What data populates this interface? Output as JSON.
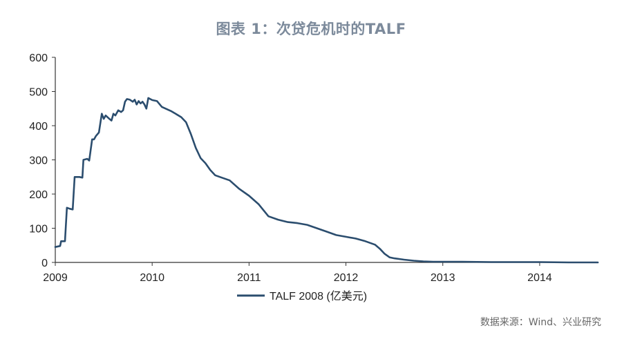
{
  "chart_data": {
    "type": "line",
    "title": "图表 1：次贷危机时的TALF",
    "xlabel": "",
    "ylabel": "",
    "ylim": [
      0,
      600
    ],
    "xlim": [
      2009.0,
      2014.6
    ],
    "y_ticks": [
      "0",
      "100",
      "200",
      "300",
      "400",
      "500",
      "600"
    ],
    "x_ticks": [
      "2009",
      "2010",
      "2011",
      "2012",
      "2013",
      "2014"
    ],
    "grid": false,
    "legend_position": "bottom",
    "series": [
      {
        "name": "TALF 2008 (亿美元)",
        "color": "#2b4d6e",
        "points": [
          [
            2009.0,
            45
          ],
          [
            2009.05,
            48
          ],
          [
            2009.06,
            62
          ],
          [
            2009.1,
            62
          ],
          [
            2009.12,
            160
          ],
          [
            2009.15,
            157
          ],
          [
            2009.18,
            155
          ],
          [
            2009.2,
            250
          ],
          [
            2009.25,
            250
          ],
          [
            2009.28,
            248
          ],
          [
            2009.29,
            300
          ],
          [
            2009.33,
            303
          ],
          [
            2009.35,
            298
          ],
          [
            2009.38,
            360
          ],
          [
            2009.4,
            360
          ],
          [
            2009.42,
            370
          ],
          [
            2009.45,
            380
          ],
          [
            2009.48,
            435
          ],
          [
            2009.5,
            420
          ],
          [
            2009.52,
            430
          ],
          [
            2009.55,
            422
          ],
          [
            2009.58,
            415
          ],
          [
            2009.6,
            435
          ],
          [
            2009.62,
            430
          ],
          [
            2009.65,
            445
          ],
          [
            2009.68,
            440
          ],
          [
            2009.7,
            445
          ],
          [
            2009.72,
            470
          ],
          [
            2009.74,
            478
          ],
          [
            2009.77,
            476
          ],
          [
            2009.8,
            470
          ],
          [
            2009.82,
            476
          ],
          [
            2009.84,
            462
          ],
          [
            2009.86,
            472
          ],
          [
            2009.88,
            465
          ],
          [
            2009.9,
            470
          ],
          [
            2009.92,
            462
          ],
          [
            2009.94,
            450
          ],
          [
            2009.96,
            481
          ],
          [
            2010.0,
            475
          ],
          [
            2010.05,
            472
          ],
          [
            2010.1,
            455
          ],
          [
            2010.2,
            442
          ],
          [
            2010.3,
            425
          ],
          [
            2010.35,
            410
          ],
          [
            2010.4,
            375
          ],
          [
            2010.45,
            335
          ],
          [
            2010.5,
            305
          ],
          [
            2010.55,
            290
          ],
          [
            2010.6,
            270
          ],
          [
            2010.65,
            255
          ],
          [
            2010.7,
            250
          ],
          [
            2010.8,
            240
          ],
          [
            2010.9,
            215
          ],
          [
            2011.0,
            195
          ],
          [
            2011.1,
            170
          ],
          [
            2011.2,
            135
          ],
          [
            2011.3,
            125
          ],
          [
            2011.4,
            118
          ],
          [
            2011.5,
            115
          ],
          [
            2011.6,
            110
          ],
          [
            2011.7,
            100
          ],
          [
            2011.8,
            90
          ],
          [
            2011.9,
            80
          ],
          [
            2012.0,
            75
          ],
          [
            2012.1,
            70
          ],
          [
            2012.2,
            62
          ],
          [
            2012.3,
            52
          ],
          [
            2012.35,
            40
          ],
          [
            2012.4,
            25
          ],
          [
            2012.45,
            15
          ],
          [
            2012.5,
            12
          ],
          [
            2012.6,
            8
          ],
          [
            2012.7,
            5
          ],
          [
            2012.8,
            3
          ],
          [
            2012.9,
            2
          ],
          [
            2013.0,
            2
          ],
          [
            2013.2,
            2
          ],
          [
            2013.5,
            1
          ],
          [
            2014.0,
            1
          ],
          [
            2014.3,
            0
          ],
          [
            2014.6,
            0
          ]
        ]
      }
    ]
  },
  "source_note": "数据来源：Wind、兴业研究"
}
